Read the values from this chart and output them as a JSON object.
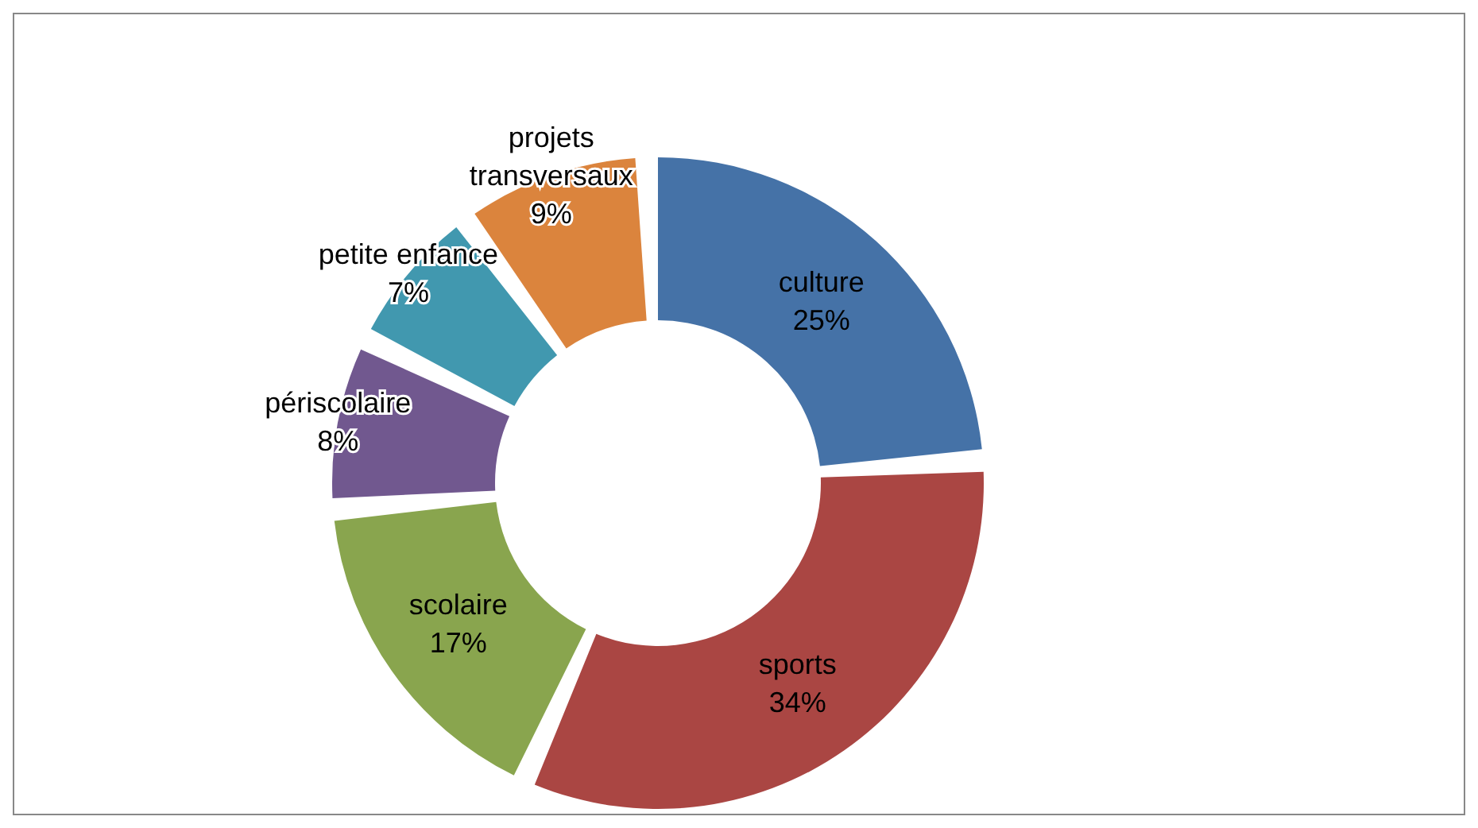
{
  "chart_data": {
    "type": "donut",
    "categories": [
      "culture",
      "sports",
      "scolaire",
      "périscolaire",
      "petite enfance",
      "projets transversaux"
    ],
    "values": [
      25,
      34,
      17,
      8,
      7,
      9
    ],
    "value_labels": [
      "25%",
      "34%",
      "17%",
      "8%",
      "7%",
      "9%"
    ],
    "colors": [
      "#4572a7",
      "#aa4643",
      "#89a54e",
      "#71588f",
      "#4198af",
      "#db843d"
    ],
    "legend": false
  }
}
